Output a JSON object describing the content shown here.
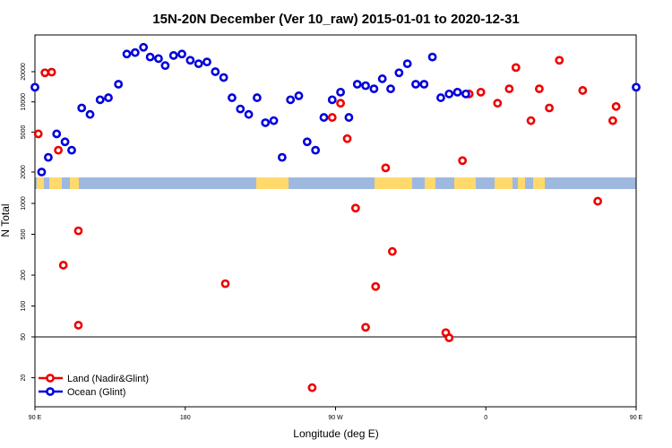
{
  "chart_data": {
    "type": "scatter",
    "title": "15N-20N December (Ver 10_raw)   2015-01-01 to 2020-12-31",
    "xlabel": "Longitude (deg E)",
    "ylabel": "N Total",
    "xlim": [
      90,
      450
    ],
    "x_ticks": [
      {
        "value": 90,
        "label": "90 E"
      },
      {
        "value": 180,
        "label": "180"
      },
      {
        "value": 270,
        "label": "90 W"
      },
      {
        "value": 360,
        "label": "0"
      },
      {
        "value": 450,
        "label": "90 E"
      },
      {
        "value": 540,
        "label": "180"
      }
    ],
    "y_ticks": [
      20,
      50,
      100,
      200,
      500,
      1000,
      2000,
      5000,
      10000,
      20000
    ],
    "legend_position": "bottom-left",
    "colors": {
      "land": "#ee0000",
      "ocean": "#0000dd",
      "land_strip": "#ffd96b",
      "ocean_strip": "#9fb8e0"
    },
    "series": [
      {
        "name": "Land (Nadir&Glint)",
        "color": "#ee0000",
        "points": [
          [
            92,
            4800
          ],
          [
            96,
            19500
          ],
          [
            100,
            19800
          ],
          [
            104,
            3300
          ],
          [
            107,
            250
          ],
          [
            116,
            540
          ],
          [
            116,
            65
          ],
          [
            204,
            165
          ],
          [
            256,
            16
          ],
          [
            268,
            7000
          ],
          [
            273,
            9700
          ],
          [
            277,
            4300
          ],
          [
            282,
            900
          ],
          [
            288,
            62
          ],
          [
            294,
            155
          ],
          [
            300,
            2200
          ],
          [
            304,
            340
          ],
          [
            336,
            55
          ],
          [
            338,
            49
          ],
          [
            346,
            2600
          ],
          [
            350,
            12000
          ],
          [
            357,
            12500
          ],
          [
            367,
            9700
          ],
          [
            374,
            13500
          ],
          [
            378,
            22000
          ],
          [
            387,
            6500
          ],
          [
            392,
            13500
          ],
          [
            398,
            8700
          ],
          [
            404,
            26000
          ],
          [
            418,
            13000
          ],
          [
            427,
            1050
          ],
          [
            436,
            6500
          ],
          [
            438,
            9000
          ]
        ]
      },
      {
        "name": "Ocean (Glint)",
        "color": "#0000dd",
        "points": [
          [
            90,
            14000
          ],
          [
            94,
            2000
          ],
          [
            98,
            2800
          ],
          [
            103,
            4800
          ],
          [
            108,
            4000
          ],
          [
            112,
            3300
          ],
          [
            118,
            8700
          ],
          [
            123,
            7500
          ],
          [
            129,
            10500
          ],
          [
            134,
            11000
          ],
          [
            140,
            15000
          ],
          [
            145,
            30000
          ],
          [
            150,
            31000
          ],
          [
            155,
            35000
          ],
          [
            159,
            28000
          ],
          [
            164,
            27000
          ],
          [
            168,
            23000
          ],
          [
            173,
            29000
          ],
          [
            178,
            30000
          ],
          [
            183,
            26000
          ],
          [
            188,
            24000
          ],
          [
            193,
            25000
          ],
          [
            198,
            20000
          ],
          [
            203,
            17500
          ],
          [
            208,
            11000
          ],
          [
            213,
            8500
          ],
          [
            218,
            7500
          ],
          [
            223,
            11000
          ],
          [
            228,
            6200
          ],
          [
            233,
            6500
          ],
          [
            238,
            2800
          ],
          [
            243,
            10500
          ],
          [
            248,
            11500
          ],
          [
            253,
            4000
          ],
          [
            258,
            3300
          ],
          [
            263,
            7000
          ],
          [
            268,
            10500
          ],
          [
            273,
            12500
          ],
          [
            278,
            7000
          ],
          [
            283,
            15000
          ],
          [
            288,
            14500
          ],
          [
            293,
            13500
          ],
          [
            298,
            17000
          ],
          [
            303,
            13500
          ],
          [
            308,
            19500
          ],
          [
            313,
            24000
          ],
          [
            318,
            15000
          ],
          [
            323,
            15000
          ],
          [
            328,
            28000
          ],
          [
            333,
            11000
          ],
          [
            338,
            12000
          ],
          [
            343,
            12500
          ],
          [
            348,
            12000
          ]
        ]
      }
    ]
  }
}
